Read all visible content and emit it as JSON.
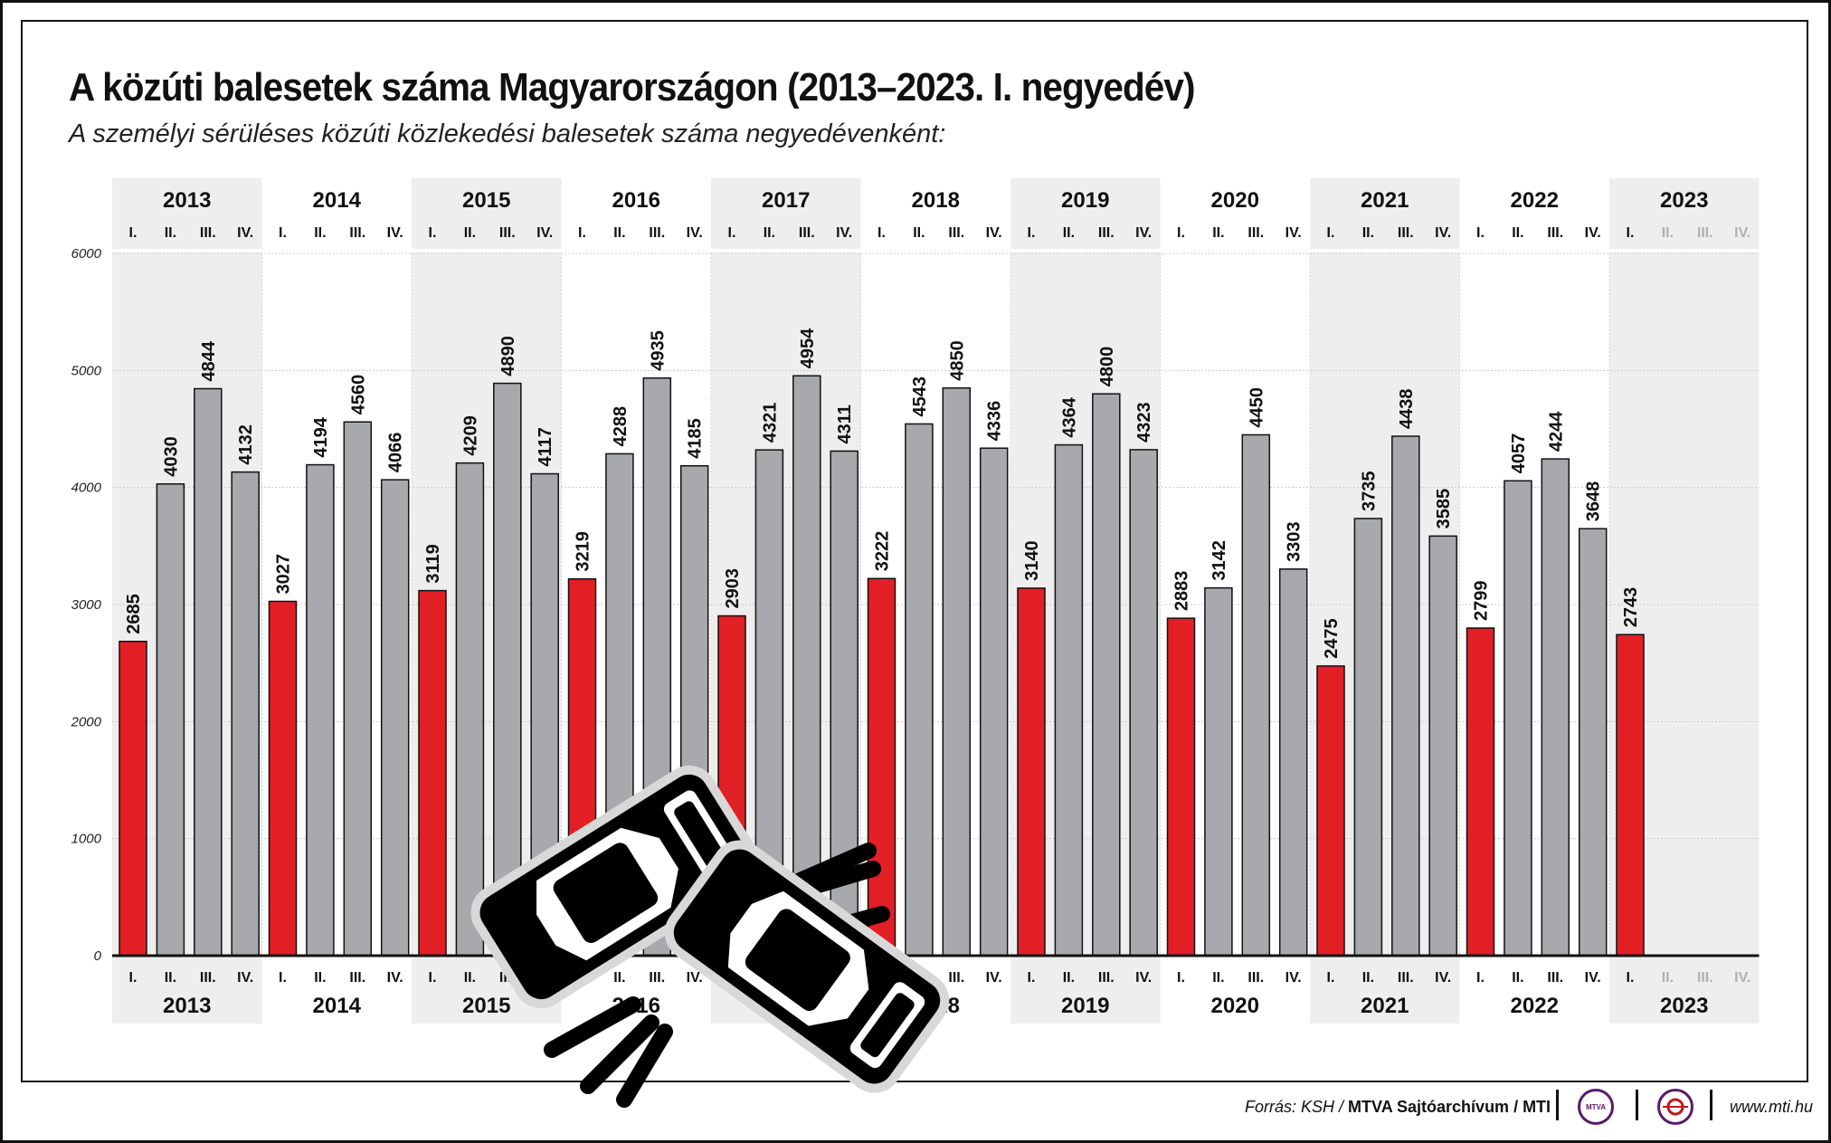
{
  "title": "A közúti balesetek száma Magyarországon (2013–2023. I. negyedév)",
  "subtitle": "A személyi sérüléses közúti közlekedési balesetek száma negyedévenként:",
  "footer": {
    "source_prefix": "Forrás: KSH / ",
    "source_bold": "MTVA Sajtóarchívum / MTI",
    "logo_mtva": "MTVA",
    "url": "www.mti.hu"
  },
  "colors": {
    "q1_bar": "#e31f26",
    "other_bar": "#a8a9ad",
    "band": "#eeeeef",
    "inactive_text": "#b0b0b0"
  },
  "decoration_icon": "car-crash-icon",
  "chart_data": {
    "type": "bar",
    "title": "A közúti balesetek száma Magyarországon (2013–2023. I. negyedév)",
    "ylim": [
      0,
      6000
    ],
    "yticks": [
      0,
      1000,
      2000,
      3000,
      4000,
      5000,
      6000
    ],
    "grid": true,
    "quarter_labels": [
      "I.",
      "II.",
      "III.",
      "IV."
    ],
    "years": [
      {
        "year": "2013",
        "values": [
          2685,
          4030,
          4844,
          4132
        ]
      },
      {
        "year": "2014",
        "values": [
          3027,
          4194,
          4560,
          4066
        ]
      },
      {
        "year": "2015",
        "values": [
          3119,
          4209,
          4890,
          4117
        ]
      },
      {
        "year": "2016",
        "values": [
          3219,
          4288,
          4935,
          4185
        ]
      },
      {
        "year": "2017",
        "values": [
          2903,
          4321,
          4954,
          4311
        ]
      },
      {
        "year": "2018",
        "values": [
          3222,
          4543,
          4850,
          4336
        ]
      },
      {
        "year": "2019",
        "values": [
          3140,
          4364,
          4800,
          4323
        ]
      },
      {
        "year": "2020",
        "values": [
          2883,
          3142,
          4450,
          3303
        ]
      },
      {
        "year": "2021",
        "values": [
          2475,
          3735,
          4438,
          3585
        ]
      },
      {
        "year": "2022",
        "values": [
          2799,
          4057,
          4244,
          3648
        ]
      },
      {
        "year": "2023",
        "values": [
          2743
        ]
      }
    ]
  }
}
